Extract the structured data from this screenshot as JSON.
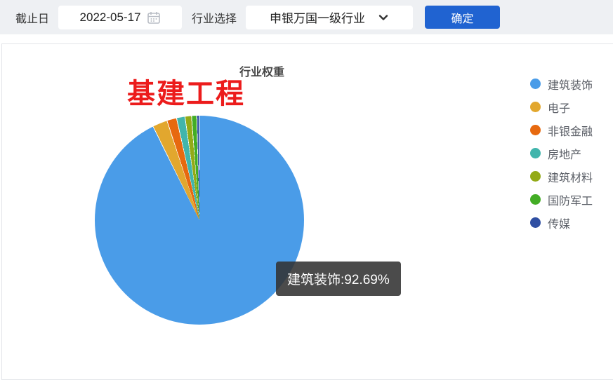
{
  "toolbar": {
    "date_label": "截止日",
    "date_value": "2022-05-17",
    "industry_label": "行业选择",
    "industry_value": "申银万国一级行业",
    "confirm_label": "确定",
    "confirm_color": "#2063d1"
  },
  "chart": {
    "title": "行业权重",
    "annotation": "基建工程",
    "annotation_color": "#ec1c1c",
    "tooltip_text": "建筑装饰:92.69%"
  },
  "chart_data": {
    "type": "pie",
    "title": "行业权重",
    "categories": [
      "建筑装饰",
      "电子",
      "非银金融",
      "房地产",
      "建筑材料",
      "国防军工",
      "传媒"
    ],
    "values": [
      92.69,
      2.3,
      1.5,
      1.3,
      1.0,
      0.8,
      0.41
    ],
    "colors": [
      "#4a9ce8",
      "#e2a72e",
      "#e7690f",
      "#41b5ac",
      "#93aa17",
      "#43ad25",
      "#2f4fa2"
    ],
    "start_angle": "top",
    "direction": "clockwise",
    "legend_position": "right",
    "highlight": {
      "label": "建筑装饰",
      "value_pct": 92.69
    }
  }
}
